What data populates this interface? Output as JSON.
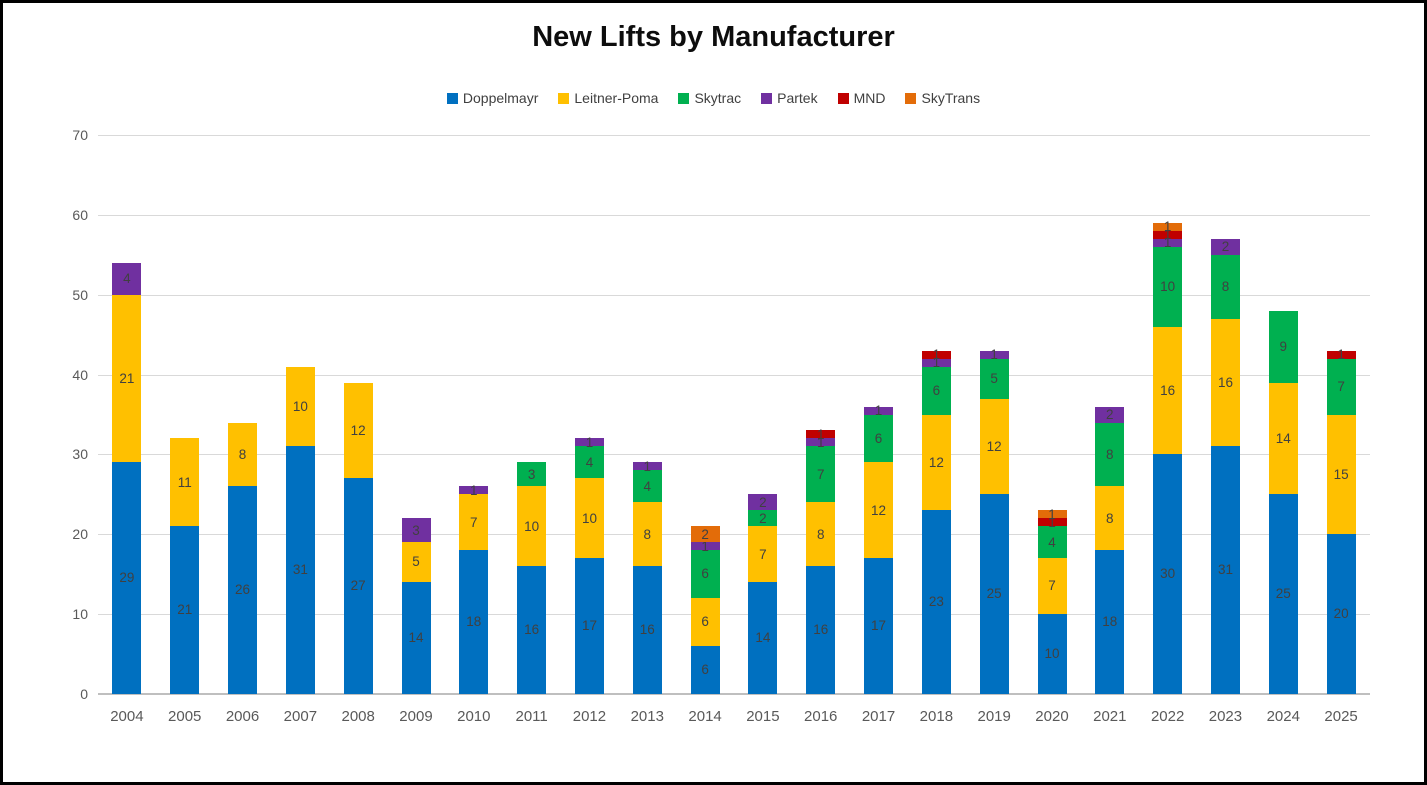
{
  "title": "New Lifts by Manufacturer",
  "colors": {
    "doppelmayr": "#0070C0",
    "leitner_poma": "#FFC000",
    "skytrac": "#00B050",
    "partek": "#7030A0",
    "mnd": "#C00000",
    "skytrans": "#E36C09",
    "gridline": "#D9D9D9",
    "axis_line": "#BFBFBF",
    "axis_text": "#595959",
    "segment_label_text": "#404040",
    "title_text": "#0D0D0D",
    "page_border": "#000000"
  },
  "chart_data": {
    "type": "bar",
    "stacked": true,
    "title": "New Lifts by Manufacturer",
    "xlabel": "",
    "ylabel": "",
    "ylim": [
      0,
      70
    ],
    "yticks": [
      0,
      10,
      20,
      30,
      40,
      50,
      60,
      70
    ],
    "grid": true,
    "legend_position": "top",
    "data_labels": true,
    "categories": [
      "2004",
      "2005",
      "2006",
      "2007",
      "2008",
      "2009",
      "2010",
      "2011",
      "2012",
      "2013",
      "2014",
      "2015",
      "2016",
      "2017",
      "2018",
      "2019",
      "2020",
      "2021",
      "2022",
      "2023",
      "2024",
      "2025"
    ],
    "series": [
      {
        "name": "Doppelmayr",
        "color": "#0070C0",
        "values": [
          29,
          21,
          26,
          31,
          27,
          14,
          18,
          16,
          17,
          16,
          6,
          14,
          16,
          17,
          23,
          25,
          10,
          18,
          30,
          31,
          25,
          20
        ]
      },
      {
        "name": "Leitner-Poma",
        "color": "#FFC000",
        "values": [
          21,
          11,
          8,
          10,
          12,
          5,
          7,
          10,
          10,
          8,
          6,
          7,
          8,
          12,
          12,
          12,
          7,
          8,
          16,
          16,
          14,
          15
        ]
      },
      {
        "name": "Skytrac",
        "color": "#00B050",
        "values": [
          0,
          0,
          0,
          0,
          0,
          0,
          0,
          3,
          4,
          4,
          6,
          2,
          7,
          6,
          6,
          5,
          4,
          8,
          10,
          8,
          9,
          7
        ]
      },
      {
        "name": "Partek",
        "color": "#7030A0",
        "values": [
          4,
          0,
          0,
          0,
          0,
          3,
          1,
          0,
          1,
          1,
          1,
          2,
          1,
          1,
          1,
          1,
          0,
          2,
          1,
          2,
          0,
          0
        ]
      },
      {
        "name": "MND",
        "color": "#C00000",
        "values": [
          0,
          0,
          0,
          0,
          0,
          0,
          0,
          0,
          0,
          0,
          0,
          0,
          1,
          0,
          1,
          0,
          1,
          0,
          1,
          0,
          0,
          1
        ]
      },
      {
        "name": "SkyTrans",
        "color": "#E36C09",
        "values": [
          0,
          0,
          0,
          0,
          0,
          0,
          0,
          0,
          0,
          0,
          2,
          0,
          0,
          0,
          0,
          0,
          1,
          0,
          1,
          0,
          0,
          0
        ]
      }
    ],
    "totals": [
      54,
      32,
      34,
      41,
      39,
      22,
      26,
      29,
      32,
      29,
      21,
      25,
      33,
      36,
      43,
      43,
      23,
      36,
      59,
      57,
      48,
      43
    ]
  }
}
